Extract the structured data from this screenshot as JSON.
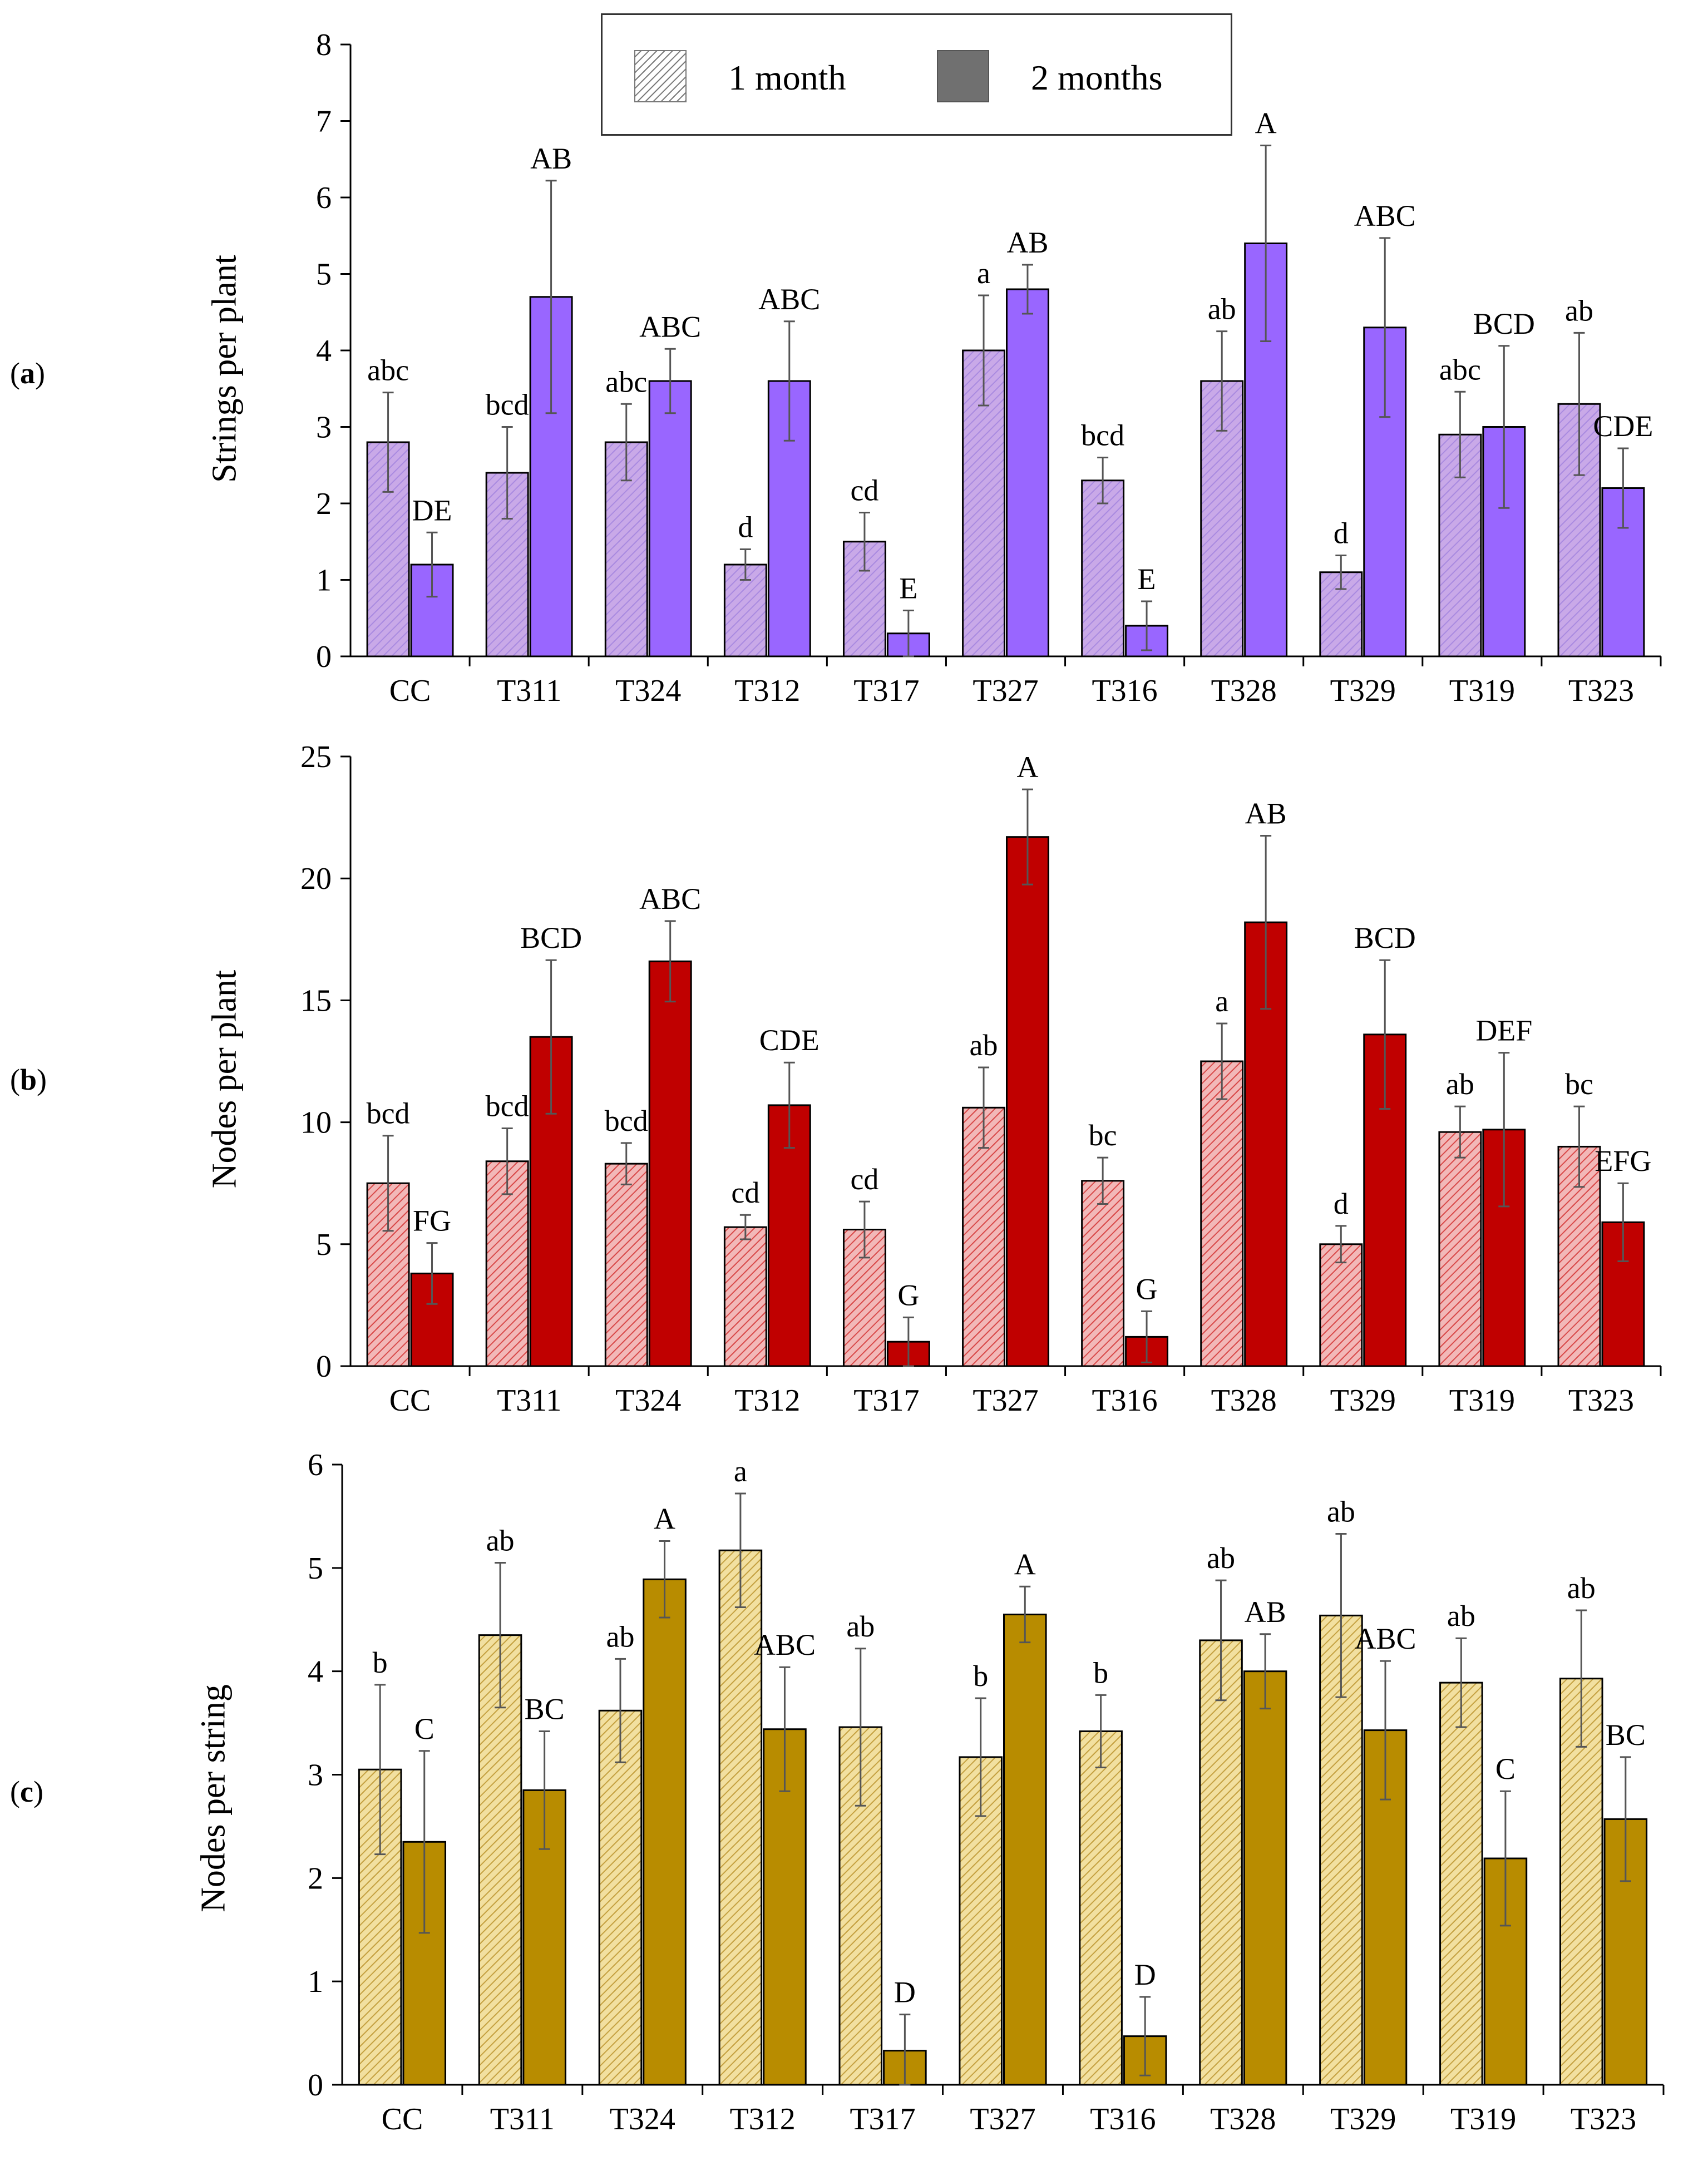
{
  "chart_data": [
    {
      "panel": "(a)",
      "type": "bar",
      "ylabel": "Strings per plant",
      "ylim": [
        0,
        8
      ],
      "yticks": [
        "0",
        "1",
        "2",
        "3",
        "4",
        "5",
        "6",
        "7",
        "8"
      ],
      "categories": [
        "CC",
        "T311",
        "T324",
        "T312",
        "T317",
        "T327",
        "T316",
        "T328",
        "T329",
        "T319",
        "T323"
      ],
      "series": [
        {
          "name": "1 month",
          "pattern": "hatched",
          "values": [
            2.8,
            2.4,
            2.8,
            1.2,
            1.5,
            4.0,
            2.3,
            3.6,
            1.1,
            2.9,
            3.3
          ],
          "errors": [
            0.65,
            0.6,
            0.5,
            0.2,
            0.38,
            0.72,
            0.3,
            0.65,
            0.22,
            0.56,
            0.93
          ],
          "letters": [
            "abc",
            "bcd",
            "abc",
            "d",
            "cd",
            "a",
            "bcd",
            "ab",
            "d",
            "abc",
            "ab"
          ]
        },
        {
          "name": "2 months",
          "pattern": "solid",
          "values": [
            1.2,
            4.7,
            3.6,
            3.6,
            0.3,
            4.8,
            0.4,
            5.4,
            4.3,
            3.0,
            2.2
          ],
          "errors": [
            0.42,
            1.52,
            0.42,
            0.78,
            0.3,
            0.32,
            0.32,
            1.28,
            1.17,
            1.06,
            0.52
          ],
          "letters": [
            "DE",
            "AB",
            "ABC",
            "ABC",
            "E",
            "AB",
            "E",
            "A",
            "ABC",
            "BCD",
            "CDE"
          ]
        }
      ],
      "colors": {
        "band": "#d0bbf6",
        "light": "#c9a9e8",
        "dark": "#9966ff",
        "hatch": "#a98ae0"
      }
    },
    {
      "panel": "(b)",
      "type": "bar",
      "ylabel": "Nodes per plant",
      "ylim": [
        0,
        25
      ],
      "yticks": [
        "0",
        "5",
        "10",
        "15",
        "20",
        "25"
      ],
      "categories": [
        "CC",
        "T311",
        "T324",
        "T312",
        "T317",
        "T327",
        "T316",
        "T328",
        "T329",
        "T319",
        "T323"
      ],
      "series": [
        {
          "name": "1 month",
          "pattern": "hatched",
          "values": [
            7.5,
            8.4,
            8.3,
            5.7,
            5.6,
            10.6,
            7.6,
            12.5,
            5.0,
            9.6,
            9.0
          ],
          "errors": [
            1.95,
            1.35,
            0.85,
            0.5,
            1.15,
            1.65,
            0.95,
            1.55,
            0.75,
            1.05,
            1.65
          ],
          "letters": [
            "bcd",
            "bcd",
            "bcd",
            "cd",
            "cd",
            "ab",
            "bc",
            "a",
            "d",
            "ab",
            "bc"
          ]
        },
        {
          "name": "2 months",
          "pattern": "solid",
          "values": [
            3.8,
            13.5,
            16.6,
            10.7,
            1.0,
            21.7,
            1.2,
            18.2,
            13.6,
            9.7,
            5.9
          ],
          "errors": [
            1.25,
            3.15,
            1.65,
            1.75,
            1.0,
            1.95,
            1.05,
            3.55,
            3.05,
            3.15,
            1.6
          ],
          "letters": [
            "FG",
            "BCD",
            "ABC",
            "CDE",
            "G",
            "A",
            "G",
            "AB",
            "BCD",
            "DEF",
            "EFG"
          ]
        }
      ],
      "colors": {
        "band": "#e08080",
        "light": "#f2b8b8",
        "dark": "#c00000",
        "hatch": "#d84848"
      }
    },
    {
      "panel": "(c)",
      "type": "bar",
      "ylabel": "Nodes per string",
      "ylim": [
        0,
        6
      ],
      "yticks": [
        "0",
        "1",
        "2",
        "3",
        "4",
        "5",
        "6"
      ],
      "categories": [
        "CC",
        "T311",
        "T324",
        "T312",
        "T317",
        "T327",
        "T316",
        "T328",
        "T329",
        "T319",
        "T323"
      ],
      "series": [
        {
          "name": "1 month",
          "pattern": "hatched",
          "values": [
            3.05,
            4.35,
            3.62,
            5.17,
            3.46,
            3.17,
            3.42,
            4.3,
            4.54,
            3.89,
            3.93
          ],
          "errors": [
            0.82,
            0.7,
            0.5,
            0.55,
            0.76,
            0.57,
            0.35,
            0.58,
            0.79,
            0.43,
            0.66
          ],
          "letters": [
            "b",
            "ab",
            "ab",
            "a",
            "ab",
            "b",
            "b",
            "ab",
            "ab",
            "ab",
            "ab"
          ]
        },
        {
          "name": "2 months",
          "pattern": "solid",
          "values": [
            2.35,
            2.85,
            4.89,
            3.44,
            0.33,
            4.55,
            0.47,
            4.0,
            3.43,
            2.19,
            2.57
          ],
          "errors": [
            0.88,
            0.57,
            0.37,
            0.6,
            0.35,
            0.27,
            0.38,
            0.36,
            0.67,
            0.65,
            0.6
          ],
          "letters": [
            "C",
            "BC",
            "A",
            "ABC",
            "D",
            "A",
            "D",
            "AB",
            "ABC",
            "C",
            "BC"
          ]
        }
      ],
      "colors": {
        "band": "#d4b050",
        "light": "#f2e0a0",
        "dark": "#b88c00",
        "hatch": "#c4a040"
      }
    }
  ],
  "legend": {
    "items": [
      "1 month",
      "2 months"
    ],
    "placement": "top"
  }
}
